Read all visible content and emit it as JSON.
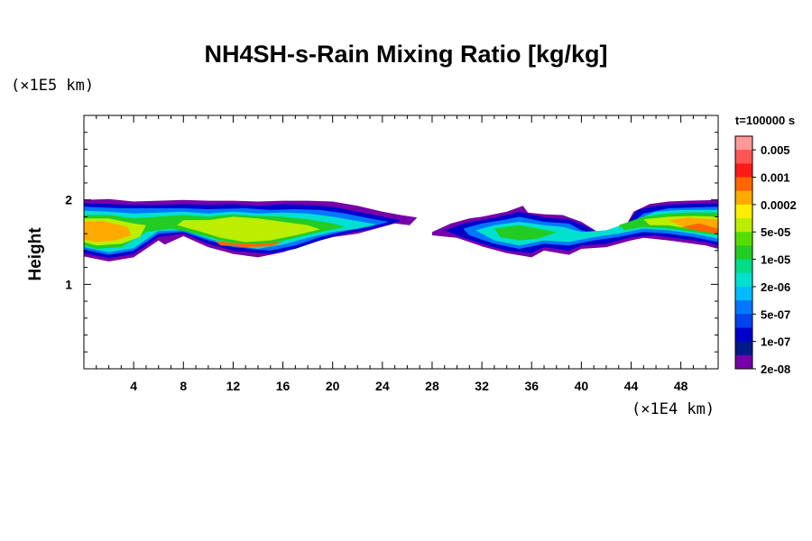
{
  "chart_data": {
    "type": "heatmap",
    "title": "NH4SH-s-Rain Mixing Ratio [kg/kg]",
    "xlabel": "",
    "ylabel": "Height",
    "x_unit_label": "(×1E4 km)",
    "y_unit_label": "(×1E5 km)",
    "time_label": "t=100000 s",
    "xlim": [
      0,
      51
    ],
    "ylim": [
      0,
      3
    ],
    "x_ticks": [
      4,
      8,
      12,
      16,
      20,
      24,
      28,
      32,
      36,
      40,
      44,
      48
    ],
    "y_ticks": [
      1,
      2
    ],
    "colorbar": {
      "labels": [
        "0.005",
        "0.001",
        "0.0002",
        "5e-05",
        "1e-05",
        "2e-06",
        "5e-07",
        "1e-07",
        "2e-08"
      ],
      "colors": [
        "#ff9999",
        "#ff5555",
        "#ff1a1a",
        "#ff6600",
        "#ffaa00",
        "#ffee00",
        "#bbee00",
        "#55dd00",
        "#22cc22",
        "#00dd88",
        "#00e0d0",
        "#00bbff",
        "#0077ff",
        "#0044ee",
        "#0000cc",
        "#001a88",
        "#7700aa"
      ]
    },
    "regions": [
      {
        "level": 16,
        "points": [
          [
            0,
            2.0
          ],
          [
            2,
            2.01
          ],
          [
            4,
            1.98
          ],
          [
            6,
            1.99
          ],
          [
            8,
            2.0
          ],
          [
            10,
            1.99
          ],
          [
            12,
            1.99
          ],
          [
            14,
            1.98
          ],
          [
            16,
            1.99
          ],
          [
            18,
            1.99
          ],
          [
            20,
            1.98
          ],
          [
            22,
            1.93
          ],
          [
            24,
            1.86
          ],
          [
            25.5,
            1.82
          ],
          [
            26.8,
            1.79
          ],
          [
            26.2,
            1.7
          ],
          [
            25,
            1.72
          ],
          [
            22,
            1.6
          ],
          [
            20,
            1.56
          ],
          [
            18,
            1.48
          ],
          [
            16,
            1.38
          ],
          [
            14,
            1.32
          ],
          [
            12,
            1.36
          ],
          [
            10,
            1.44
          ],
          [
            8,
            1.57
          ],
          [
            6.5,
            1.47
          ],
          [
            6,
            1.52
          ],
          [
            4,
            1.32
          ],
          [
            2,
            1.27
          ],
          [
            0,
            1.33
          ]
        ]
      },
      {
        "level": 16,
        "points": [
          [
            28,
            1.62
          ],
          [
            29.5,
            1.72
          ],
          [
            31,
            1.78
          ],
          [
            32,
            1.8
          ],
          [
            34,
            1.86
          ],
          [
            35.3,
            1.93
          ],
          [
            35.7,
            1.85
          ],
          [
            37,
            1.83
          ],
          [
            38.5,
            1.82
          ],
          [
            40,
            1.74
          ],
          [
            41,
            1.65
          ],
          [
            42,
            1.55
          ],
          [
            43,
            1.52
          ],
          [
            43.6,
            1.7
          ],
          [
            44.2,
            1.86
          ],
          [
            45.5,
            1.95
          ],
          [
            47,
            1.98
          ],
          [
            48.5,
            1.99
          ],
          [
            51,
            2.0
          ],
          [
            51,
            1.42
          ],
          [
            50,
            1.46
          ],
          [
            49,
            1.48
          ],
          [
            47,
            1.52
          ],
          [
            45,
            1.55
          ],
          [
            44,
            1.52
          ],
          [
            42,
            1.44
          ],
          [
            40,
            1.42
          ],
          [
            39,
            1.35
          ],
          [
            37,
            1.4
          ],
          [
            36,
            1.32
          ],
          [
            34,
            1.37
          ],
          [
            32,
            1.45
          ],
          [
            30,
            1.55
          ],
          [
            28,
            1.58
          ]
        ]
      },
      {
        "level": 14,
        "points": [
          [
            0,
            1.96
          ],
          [
            2,
            1.95
          ],
          [
            4,
            1.94
          ],
          [
            6,
            1.94
          ],
          [
            8,
            1.95
          ],
          [
            10,
            1.94
          ],
          [
            12,
            1.95
          ],
          [
            14,
            1.93
          ],
          [
            16,
            1.95
          ],
          [
            18,
            1.94
          ],
          [
            20,
            1.92
          ],
          [
            22,
            1.86
          ],
          [
            24,
            1.8
          ],
          [
            25.5,
            1.76
          ],
          [
            25,
            1.73
          ],
          [
            23,
            1.65
          ],
          [
            21,
            1.6
          ],
          [
            19,
            1.52
          ],
          [
            17,
            1.42
          ],
          [
            15,
            1.36
          ],
          [
            12,
            1.4
          ],
          [
            10,
            1.48
          ],
          [
            8,
            1.6
          ],
          [
            6,
            1.56
          ],
          [
            4,
            1.36
          ],
          [
            2,
            1.31
          ],
          [
            0,
            1.37
          ]
        ]
      },
      {
        "level": 14,
        "points": [
          [
            29,
            1.64
          ],
          [
            30.5,
            1.72
          ],
          [
            32,
            1.76
          ],
          [
            34,
            1.82
          ],
          [
            35,
            1.86
          ],
          [
            37,
            1.79
          ],
          [
            39,
            1.77
          ],
          [
            40.5,
            1.68
          ],
          [
            41.5,
            1.58
          ],
          [
            43,
            1.58
          ],
          [
            44.5,
            1.88
          ],
          [
            46,
            1.93
          ],
          [
            48,
            1.95
          ],
          [
            51,
            1.96
          ],
          [
            51,
            1.46
          ],
          [
            50,
            1.5
          ],
          [
            48,
            1.54
          ],
          [
            46,
            1.58
          ],
          [
            44,
            1.56
          ],
          [
            42,
            1.48
          ],
          [
            40,
            1.46
          ],
          [
            39,
            1.4
          ],
          [
            37,
            1.44
          ],
          [
            36,
            1.37
          ],
          [
            34,
            1.4
          ],
          [
            32,
            1.48
          ],
          [
            30,
            1.58
          ]
        ]
      },
      {
        "level": 12,
        "points": [
          [
            0,
            1.92
          ],
          [
            3,
            1.9
          ],
          [
            6,
            1.9
          ],
          [
            8,
            1.9
          ],
          [
            10,
            1.89
          ],
          [
            13,
            1.9
          ],
          [
            15,
            1.88
          ],
          [
            17,
            1.89
          ],
          [
            19,
            1.88
          ],
          [
            21,
            1.84
          ],
          [
            23,
            1.78
          ],
          [
            24.5,
            1.74
          ],
          [
            23,
            1.68
          ],
          [
            21,
            1.63
          ],
          [
            19,
            1.56
          ],
          [
            17,
            1.46
          ],
          [
            15,
            1.4
          ],
          [
            12,
            1.44
          ],
          [
            10,
            1.52
          ],
          [
            8,
            1.62
          ],
          [
            6,
            1.6
          ],
          [
            4,
            1.4
          ],
          [
            2,
            1.35
          ],
          [
            0,
            1.41
          ]
        ]
      },
      {
        "level": 12,
        "points": [
          [
            30.5,
            1.66
          ],
          [
            32,
            1.72
          ],
          [
            34,
            1.77
          ],
          [
            35,
            1.8
          ],
          [
            37,
            1.74
          ],
          [
            39,
            1.72
          ],
          [
            40,
            1.64
          ],
          [
            41,
            1.6
          ],
          [
            43.5,
            1.66
          ],
          [
            45,
            1.84
          ],
          [
            47,
            1.9
          ],
          [
            51,
            1.92
          ],
          [
            51,
            1.5
          ],
          [
            49,
            1.56
          ],
          [
            47,
            1.6
          ],
          [
            45,
            1.62
          ],
          [
            43,
            1.56
          ],
          [
            41,
            1.52
          ],
          [
            39,
            1.46
          ],
          [
            37,
            1.48
          ],
          [
            35,
            1.42
          ],
          [
            33,
            1.48
          ],
          [
            31,
            1.58
          ]
        ]
      },
      {
        "level": 10,
        "points": [
          [
            0,
            1.87
          ],
          [
            2,
            1.86
          ],
          [
            4,
            1.84
          ],
          [
            6,
            1.85
          ],
          [
            8,
            1.86
          ],
          [
            10,
            1.84
          ],
          [
            12,
            1.86
          ],
          [
            14,
            1.84
          ],
          [
            16,
            1.85
          ],
          [
            18,
            1.84
          ],
          [
            20,
            1.8
          ],
          [
            22,
            1.75
          ],
          [
            23.5,
            1.71
          ],
          [
            22,
            1.66
          ],
          [
            20,
            1.62
          ],
          [
            18,
            1.55
          ],
          [
            16,
            1.47
          ],
          [
            14,
            1.42
          ],
          [
            12,
            1.46
          ],
          [
            10,
            1.54
          ],
          [
            8,
            1.64
          ],
          [
            6,
            1.63
          ],
          [
            4,
            1.43
          ],
          [
            2,
            1.38
          ],
          [
            0,
            1.44
          ]
        ]
      },
      {
        "level": 10,
        "points": [
          [
            31.5,
            1.64
          ],
          [
            33,
            1.7
          ],
          [
            35,
            1.74
          ],
          [
            37,
            1.7
          ],
          [
            38.5,
            1.68
          ],
          [
            40,
            1.62
          ],
          [
            42,
            1.64
          ],
          [
            44,
            1.74
          ],
          [
            46,
            1.86
          ],
          [
            48,
            1.88
          ],
          [
            51,
            1.88
          ],
          [
            51,
            1.54
          ],
          [
            49,
            1.6
          ],
          [
            47,
            1.64
          ],
          [
            45,
            1.66
          ],
          [
            43,
            1.6
          ],
          [
            41,
            1.56
          ],
          [
            39,
            1.5
          ],
          [
            37,
            1.52
          ],
          [
            35,
            1.46
          ],
          [
            33,
            1.52
          ]
        ]
      },
      {
        "level": 8,
        "points": [
          [
            0,
            1.82
          ],
          [
            2,
            1.82
          ],
          [
            4,
            1.78
          ],
          [
            6,
            1.8
          ],
          [
            8,
            1.82
          ],
          [
            10,
            1.8
          ],
          [
            12,
            1.83
          ],
          [
            14,
            1.81
          ],
          [
            16,
            1.8
          ],
          [
            18,
            1.77
          ],
          [
            20,
            1.72
          ],
          [
            21,
            1.68
          ],
          [
            19,
            1.62
          ],
          [
            17,
            1.55
          ],
          [
            15,
            1.48
          ],
          [
            13,
            1.46
          ],
          [
            11,
            1.52
          ],
          [
            9,
            1.6
          ],
          [
            7,
            1.66
          ],
          [
            5,
            1.62
          ],
          [
            3,
            1.44
          ],
          [
            1,
            1.42
          ],
          [
            0,
            1.46
          ]
        ]
      },
      {
        "level": 8,
        "points": [
          [
            33,
            1.66
          ],
          [
            35,
            1.7
          ],
          [
            36.5,
            1.66
          ],
          [
            38,
            1.62
          ],
          [
            36.5,
            1.54
          ],
          [
            35,
            1.52
          ],
          [
            33.5,
            1.56
          ]
        ]
      },
      {
        "level": 8,
        "points": [
          [
            43,
            1.7
          ],
          [
            45,
            1.8
          ],
          [
            47,
            1.84
          ],
          [
            49,
            1.85
          ],
          [
            51,
            1.85
          ],
          [
            51,
            1.58
          ],
          [
            49,
            1.62
          ],
          [
            47,
            1.66
          ],
          [
            45,
            1.68
          ],
          [
            43.5,
            1.64
          ]
        ]
      },
      {
        "level": 6,
        "points": [
          [
            0,
            1.78
          ],
          [
            2,
            1.78
          ],
          [
            4,
            1.72
          ],
          [
            5,
            1.7
          ],
          [
            4.5,
            1.56
          ],
          [
            3,
            1.48
          ],
          [
            1,
            1.46
          ],
          [
            0,
            1.5
          ]
        ]
      },
      {
        "level": 6,
        "points": [
          [
            8,
            1.76
          ],
          [
            10,
            1.76
          ],
          [
            12,
            1.8
          ],
          [
            14,
            1.78
          ],
          [
            16,
            1.74
          ],
          [
            18,
            1.7
          ],
          [
            19,
            1.65
          ],
          [
            17,
            1.58
          ],
          [
            15,
            1.52
          ],
          [
            13,
            1.5
          ],
          [
            11,
            1.55
          ],
          [
            9,
            1.64
          ],
          [
            7.5,
            1.7
          ]
        ]
      },
      {
        "level": 6,
        "points": [
          [
            45,
            1.77
          ],
          [
            47,
            1.8
          ],
          [
            49,
            1.81
          ],
          [
            51,
            1.8
          ],
          [
            51,
            1.62
          ],
          [
            49,
            1.65
          ],
          [
            47,
            1.7
          ],
          [
            45.5,
            1.7
          ]
        ]
      },
      {
        "level": 4,
        "points": [
          [
            0,
            1.74
          ],
          [
            1.5,
            1.75
          ],
          [
            3.5,
            1.68
          ],
          [
            3.8,
            1.58
          ],
          [
            2.5,
            1.52
          ],
          [
            1,
            1.5
          ],
          [
            0,
            1.53
          ]
        ]
      },
      {
        "level": 4,
        "points": [
          [
            47,
            1.76
          ],
          [
            48.5,
            1.79
          ],
          [
            51,
            1.77
          ],
          [
            51,
            1.64
          ],
          [
            49.5,
            1.67
          ],
          [
            47.8,
            1.7
          ]
        ]
      },
      {
        "level": 3,
        "points": [
          [
            10.5,
            1.52
          ],
          [
            12,
            1.49
          ],
          [
            14,
            1.48
          ],
          [
            16,
            1.5
          ],
          [
            15,
            1.45
          ],
          [
            13,
            1.44
          ],
          [
            11,
            1.46
          ]
        ]
      },
      {
        "level": 3,
        "points": [
          [
            48,
            1.68
          ],
          [
            49.5,
            1.72
          ],
          [
            51,
            1.66
          ],
          [
            51,
            1.6
          ],
          [
            49.5,
            1.63
          ]
        ]
      }
    ]
  }
}
